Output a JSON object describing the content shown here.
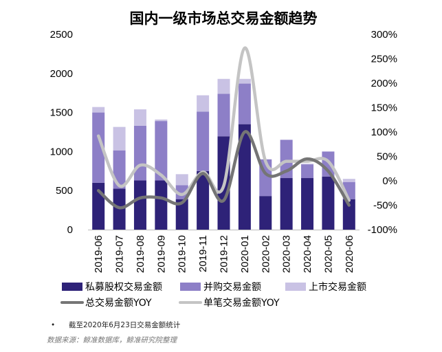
{
  "chart_data": {
    "type": "bar",
    "title": "国内一级市场总交易金额趋势",
    "categories": [
      "2019-06",
      "2019-07",
      "2019-08",
      "2019-09",
      "2019-10",
      "2019-11",
      "2019-12",
      "2020-01",
      "2020-02",
      "2020-03",
      "2020-04",
      "2020-05",
      "2020-06"
    ],
    "stacked": true,
    "series": [
      {
        "name": "私募股权交易金额",
        "kind": "bar",
        "axis": "left",
        "color": "#2e2278",
        "values": [
          600,
          525,
          630,
          630,
          390,
          750,
          1195,
          1350,
          430,
          660,
          660,
          680,
          390
        ]
      },
      {
        "name": "并购交易金额",
        "kind": "bar",
        "axis": "left",
        "color": "#8d7fc7",
        "values": [
          900,
          490,
          700,
          760,
          180,
          760,
          545,
          520,
          470,
          490,
          175,
          320,
          220
        ]
      },
      {
        "name": "上市交易金额",
        "kind": "bar",
        "axis": "left",
        "color": "#c9c2e4",
        "values": [
          70,
          300,
          210,
          20,
          140,
          210,
          190,
          60,
          0,
          0,
          10,
          0,
          40
        ]
      },
      {
        "name": "总交易金额YOY",
        "kind": "line",
        "axis": "right",
        "color": "#757575",
        "values": [
          -20,
          -55,
          -35,
          -35,
          -45,
          15,
          -40,
          100,
          15,
          20,
          45,
          20,
          -50
        ]
      },
      {
        "name": "单笔交易金额YOY",
        "kind": "line",
        "axis": "right",
        "color": "#c4c4c4",
        "values": [
          92,
          -10,
          32,
          12,
          -28,
          18,
          -10,
          272,
          40,
          40,
          40,
          40,
          -40
        ]
      }
    ],
    "y_left": {
      "min": 0,
      "max": 2500,
      "ticks": [
        "0",
        "500",
        "1000",
        "1500",
        "2000",
        "2500"
      ]
    },
    "y_right": {
      "min": -100,
      "max": 300,
      "ticks": [
        "-100%",
        "-50%",
        "0%",
        "50%",
        "100%",
        "150%",
        "200%",
        "250%",
        "300%"
      ]
    },
    "legend_position": "bottom"
  },
  "footnote": {
    "bullet": "•",
    "text": "截至2020年6月23日交易金额统计"
  },
  "source": "数据来源：鲸准数据库，鲸准研究院整理"
}
